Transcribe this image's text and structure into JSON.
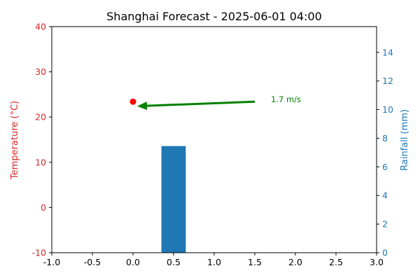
{
  "chart_data": {
    "type": "bar",
    "title": "Shanghai Forecast - 2025-06-01 04:00",
    "xlabel": "",
    "y_left_label": "Temperature (°C)",
    "y_right_label": "Rainfall (mm)",
    "xlim": [
      -1.0,
      3.0
    ],
    "y_left_lim": [
      -10,
      40
    ],
    "y_right_lim": [
      0,
      15.8
    ],
    "x_ticks": [
      "-1.0",
      "-0.5",
      "0.0",
      "0.5",
      "1.0",
      "1.5",
      "2.0",
      "2.5",
      "3.0"
    ],
    "y_left_ticks": [
      "-10",
      "0",
      "10",
      "20",
      "30",
      "40"
    ],
    "y_right_ticks": [
      "0",
      "2",
      "4",
      "6",
      "8",
      "10",
      "12",
      "14"
    ],
    "temperature_point": {
      "x": 0.0,
      "y": 23.4
    },
    "rain_bar": {
      "x": 0.5,
      "width": 0.3,
      "value": 7.45
    },
    "wind_arrow": {
      "x_start": 1.5,
      "y_start": 23.4,
      "x_end": 0.0,
      "y_end": 22.4
    },
    "wind_label": "1.7 m/s",
    "grid": false,
    "colors": {
      "temperature": "#ff0000",
      "temp_axis": "#d62728",
      "rain": "#1f77b4",
      "wind": "#008000"
    }
  }
}
